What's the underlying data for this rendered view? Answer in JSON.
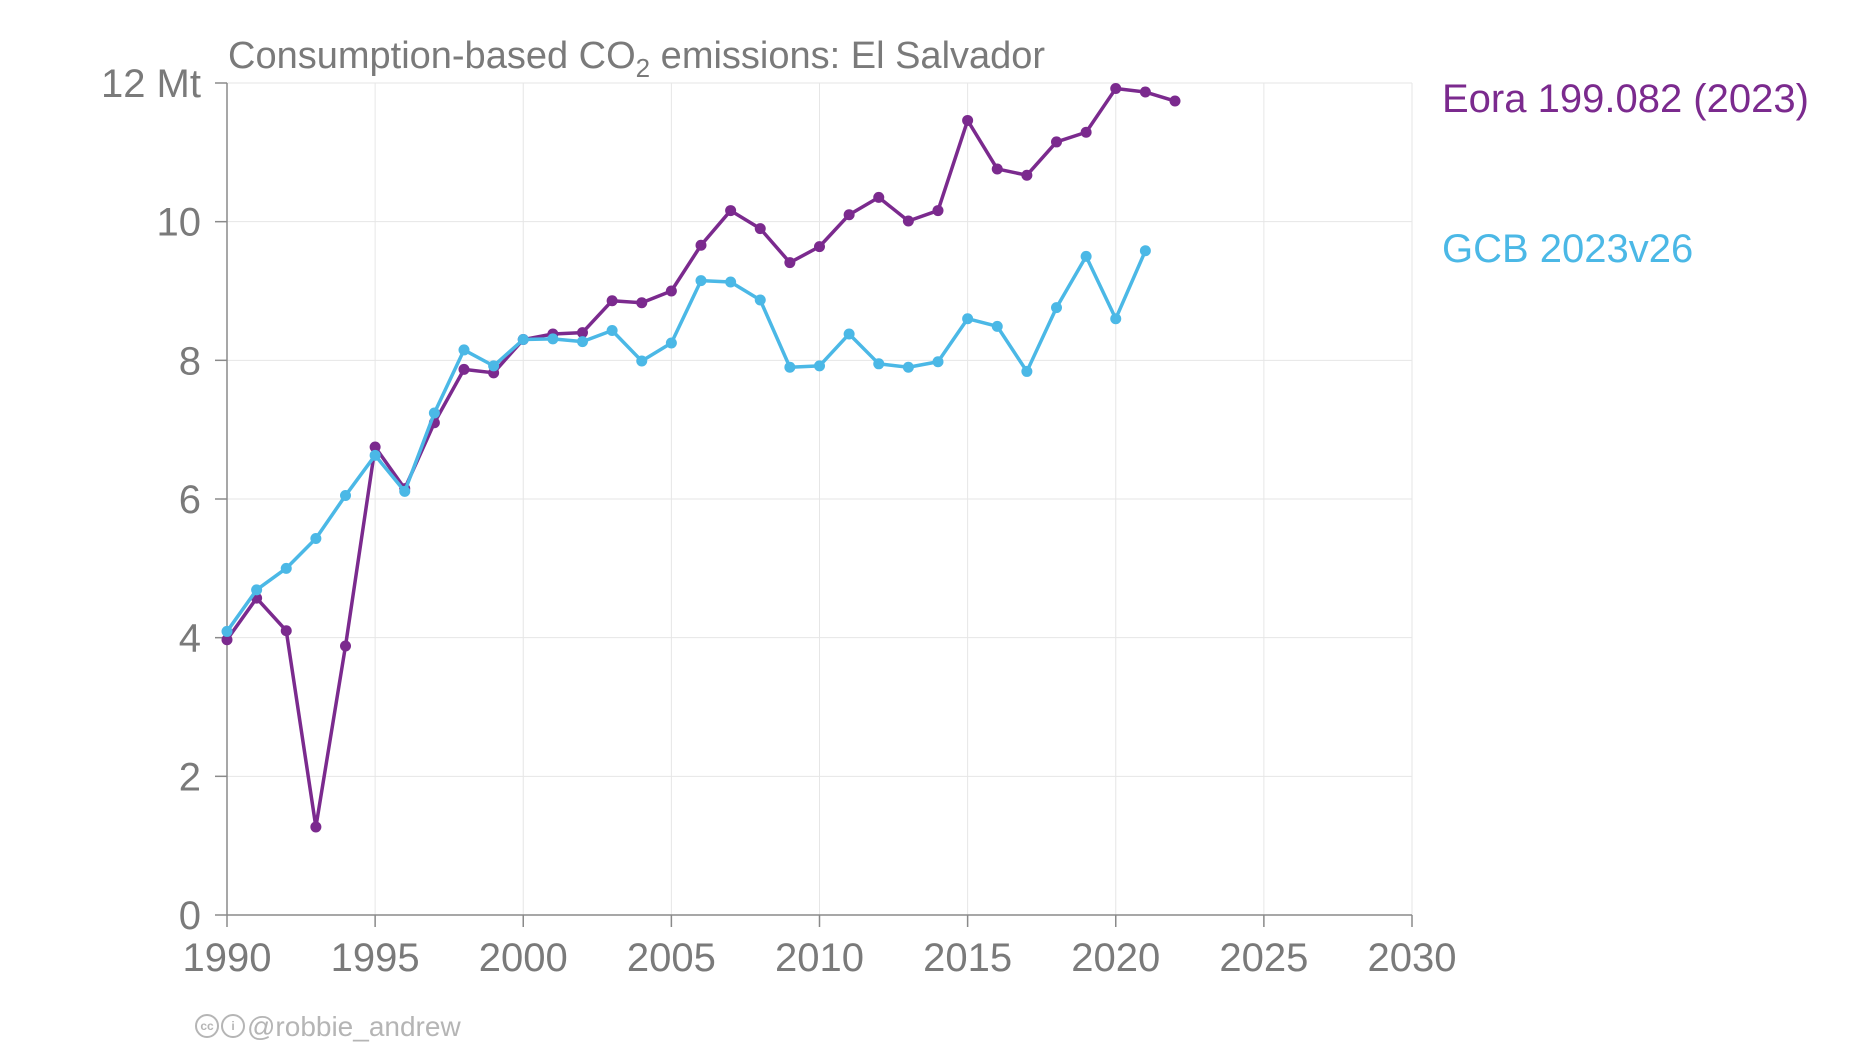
{
  "chart_data": {
    "type": "line",
    "title_main": "Consumption-based CO",
    "title_sub": "2",
    "title_rest": " emissions: El Salvador",
    "xlim": [
      1990,
      2030
    ],
    "ylim": [
      0,
      12
    ],
    "x_ticks": [
      1990,
      1995,
      2000,
      2005,
      2010,
      2015,
      2020,
      2025,
      2030
    ],
    "y_ticks": [
      0,
      2,
      4,
      6,
      8,
      10,
      12
    ],
    "y_tick_labels": [
      "0",
      "2",
      "4",
      "6",
      "8",
      "10",
      "12 Mt"
    ],
    "grid": true,
    "series": [
      {
        "name": "Eora 199.082 (2023)",
        "color": "#7b2a8e",
        "x": [
          1990,
          1991,
          1992,
          1993,
          1994,
          1995,
          1996,
          1997,
          1998,
          1999,
          2000,
          2001,
          2002,
          2003,
          2004,
          2005,
          2006,
          2007,
          2008,
          2009,
          2010,
          2011,
          2012,
          2013,
          2014,
          2015,
          2016,
          2017,
          2018,
          2019,
          2020,
          2021,
          2022
        ],
        "y": [
          3.97,
          4.57,
          4.1,
          1.27,
          3.88,
          6.75,
          6.15,
          7.1,
          7.87,
          7.82,
          8.3,
          8.38,
          8.4,
          8.86,
          8.83,
          9.0,
          9.66,
          10.16,
          9.9,
          9.41,
          9.64,
          10.1,
          10.35,
          10.01,
          10.16,
          11.46,
          10.76,
          10.67,
          11.15,
          11.29,
          11.92,
          11.87,
          11.74
        ]
      },
      {
        "name": "GCB 2023v26",
        "color": "#4bb8e6",
        "x": [
          1990,
          1991,
          1992,
          1993,
          1994,
          1995,
          1996,
          1997,
          1998,
          1999,
          2000,
          2001,
          2002,
          2003,
          2004,
          2005,
          2006,
          2007,
          2008,
          2009,
          2010,
          2011,
          2012,
          2013,
          2014,
          2015,
          2016,
          2017,
          2018,
          2019,
          2020,
          2021
        ],
        "y": [
          4.09,
          4.69,
          5.0,
          5.43,
          6.05,
          6.63,
          6.11,
          7.24,
          8.15,
          7.92,
          8.3,
          8.31,
          8.27,
          8.43,
          7.99,
          8.25,
          9.15,
          9.13,
          8.87,
          7.9,
          7.92,
          8.38,
          7.95,
          7.9,
          7.98,
          8.6,
          8.49,
          7.84,
          8.76,
          9.5,
          8.6,
          9.58
        ]
      }
    ]
  },
  "credit": "@robbie_andrew",
  "credit_icons": [
    "creative-commons-icon",
    "attribution-icon"
  ],
  "cc_glyph": "cc",
  "by_glyph": "i"
}
